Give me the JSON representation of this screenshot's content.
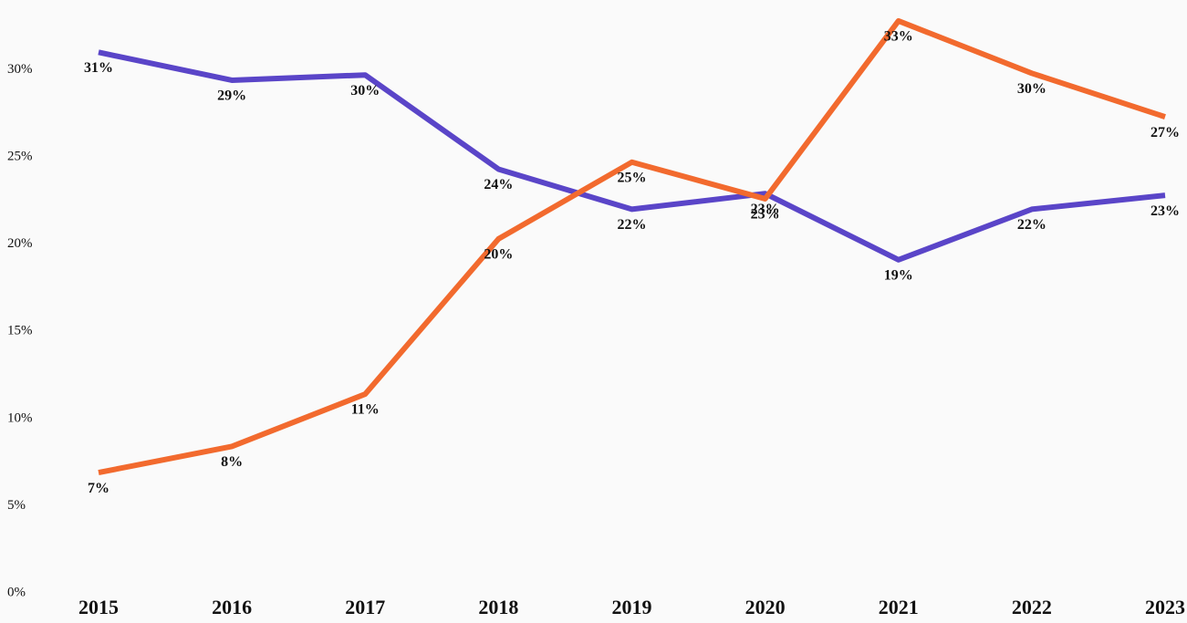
{
  "chart_data": {
    "type": "line",
    "categories": [
      "2015",
      "2016",
      "2017",
      "2018",
      "2019",
      "2020",
      "2021",
      "2022",
      "2023"
    ],
    "series": [
      {
        "color": "#5a45c8",
        "values": [
          31.0,
          29.4,
          29.7,
          24.3,
          22.0,
          22.9,
          19.1,
          22.0,
          22.8
        ],
        "value_labels": [
          "31%",
          "29%",
          "30%",
          "24%",
          "22%",
          "23%",
          "19%",
          "22%",
          "23%"
        ]
      },
      {
        "color": "#f26a2e",
        "values": [
          6.9,
          8.4,
          11.4,
          20.3,
          24.7,
          22.6,
          32.8,
          29.8,
          27.3
        ],
        "value_labels": [
          "7%",
          "8%",
          "11%",
          "20%",
          "25%",
          "23%",
          "33%",
          "30%",
          "27%"
        ]
      }
    ],
    "ylim": [
      0,
      34
    ],
    "yticks": [
      {
        "value": 0,
        "label": "0%"
      },
      {
        "value": 5,
        "label": "5%"
      },
      {
        "value": 10,
        "label": "10%"
      },
      {
        "value": 15,
        "label": "15%"
      },
      {
        "value": 20,
        "label": "20%"
      },
      {
        "value": 25,
        "label": "25%"
      },
      {
        "value": 30,
        "label": "30%"
      }
    ]
  }
}
